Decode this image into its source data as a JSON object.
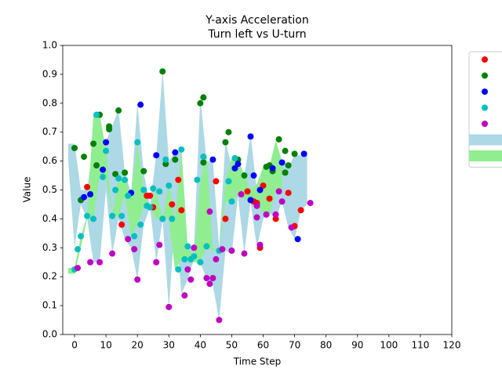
{
  "chart_data": {
    "type": "scatter",
    "title": "Y-axis Acceleration",
    "subtitle": "Turn left vs U-turn",
    "x_label": "Time Step",
    "y_label": "Value",
    "xlim": [
      -3.75,
      120
    ],
    "ylim": [
      0,
      1
    ],
    "xticks": [
      0,
      10,
      20,
      30,
      40,
      50,
      60,
      70,
      80,
      90,
      100,
      110,
      120
    ],
    "yticks": [
      {
        "value": 0,
        "label": "0.0"
      },
      0.1,
      0.2,
      0.3,
      0.4,
      0.5,
      0.6,
      0.7,
      0.8,
      0.9,
      {
        "value": 1,
        "label": "1.0"
      }
    ],
    "grid": false,
    "legend": "right",
    "bands": [
      {
        "color": "#add8e6",
        "x": [
          -2,
          0,
          2,
          4,
          6,
          8,
          10,
          12,
          14,
          16,
          18,
          20,
          22,
          24,
          26,
          28,
          30,
          32,
          34,
          36,
          38,
          40,
          42,
          44,
          46,
          48,
          50,
          52,
          54,
          56,
          58,
          60,
          62,
          64,
          66,
          68,
          70,
          72,
          74
        ],
        "upper": [
          0.66,
          0.66,
          0.5,
          0.5,
          0.66,
          0.57,
          0.67,
          0.72,
          0.78,
          0.56,
          0.49,
          0.8,
          0.56,
          0.45,
          0.62,
          0.91,
          0.6,
          0.63,
          0.64,
          0.3,
          0.3,
          0.82,
          0.6,
          0.6,
          0.3,
          0.67,
          0.58,
          0.6,
          0.55,
          0.69,
          0.5,
          0.58,
          0.58,
          0.67,
          0.6,
          0.58,
          0.62,
          0.62,
          0.62
        ],
        "lower": [
          0.6,
          0.3,
          0.45,
          0.4,
          0.25,
          0.25,
          0.5,
          0.28,
          0.4,
          0.33,
          0.3,
          0.19,
          0.38,
          0.44,
          0.25,
          0.4,
          0.09,
          0.4,
          0.14,
          0.19,
          0.26,
          0.25,
          0.19,
          0.17,
          0.05,
          0.29,
          0.28,
          0.48,
          0.28,
          0.46,
          0.3,
          0.4,
          0.42,
          0.4,
          0.46,
          0.37,
          0.33,
          0.43,
          0.45
        ]
      },
      {
        "color": "#90ee90",
        "x": [
          -2,
          0,
          2,
          4,
          6,
          8,
          10,
          12,
          14,
          16,
          18,
          20,
          22,
          24,
          26,
          28,
          30,
          32,
          34,
          36,
          38,
          40,
          42,
          44,
          46,
          48,
          50,
          52,
          54,
          56,
          58,
          60,
          62,
          64,
          66
        ],
        "upper": [
          0.23,
          0.23,
          0.34,
          0.41,
          0.76,
          0.76,
          0.64,
          0.41,
          0.54,
          0.54,
          0.48,
          0.66,
          0.5,
          0.44,
          0.5,
          0.4,
          0.52,
          0.4,
          0.64,
          0.3,
          0.27,
          0.53,
          0.62,
          0.3,
          0.29,
          0.53,
          0.61,
          0.61,
          0.55,
          0.5,
          0.52,
          0.58,
          0.58,
          0.67,
          0.6
        ],
        "lower": [
          0.21,
          0.21,
          0.3,
          0.4,
          0.4,
          0.55,
          0.54,
          0.41,
          0.41,
          0.48,
          0.34,
          0.38,
          0.44,
          0.44,
          0.4,
          0.4,
          0.4,
          0.22,
          0.26,
          0.26,
          0.25,
          0.25,
          0.3,
          0.29,
          0.29,
          0.46,
          0.46,
          0.48,
          0.47,
          0.46,
          0.45,
          0.42,
          0.41,
          0.5,
          0.5
        ]
      }
    ],
    "series": [
      {
        "color": "#ff0000",
        "x": [
          4,
          15,
          23,
          24,
          25,
          31,
          33,
          34,
          45,
          48,
          55,
          57,
          58,
          60,
          62,
          64,
          68,
          70,
          72,
          59
        ],
        "values": [
          0.51,
          0.38,
          0.48,
          0.48,
          0.44,
          0.45,
          0.535,
          0.43,
          0.53,
          0.4,
          0.495,
          0.46,
          0.455,
          0.515,
          0.47,
          0.4,
          0.49,
          0.375,
          0.43,
          0.3
        ]
      },
      {
        "color": "#008000",
        "x": [
          0,
          2,
          3,
          6,
          7,
          8,
          11,
          11,
          13,
          14,
          16,
          22,
          28,
          29,
          32,
          40,
          41,
          41,
          48,
          49,
          52,
          54,
          61,
          62,
          63,
          65,
          67,
          67,
          68,
          70
        ],
        "values": [
          0.645,
          0.465,
          0.615,
          0.66,
          0.585,
          0.76,
          0.72,
          0.71,
          0.555,
          0.775,
          0.56,
          0.565,
          0.91,
          0.59,
          0.605,
          0.8,
          0.82,
          0.595,
          0.665,
          0.7,
          0.605,
          0.55,
          0.58,
          0.585,
          0.565,
          0.675,
          0.635,
          0.56,
          0.585,
          0.625
        ]
      },
      {
        "color": "#0000ff",
        "x": [
          3,
          5,
          9,
          10,
          18,
          21,
          26,
          32,
          44,
          51,
          52,
          56,
          56,
          57,
          59,
          63,
          66,
          71,
          73
        ],
        "values": [
          0.475,
          0.485,
          0.57,
          0.665,
          0.49,
          0.795,
          0.62,
          0.63,
          0.605,
          0.575,
          0.59,
          0.465,
          0.685,
          0.55,
          0.5,
          0.575,
          0.595,
          0.33,
          0.625
        ]
      },
      {
        "color": "#00bfbf",
        "x": [
          0,
          1,
          2,
          4,
          6,
          7,
          9,
          10,
          12,
          13,
          14,
          15,
          16,
          17,
          19,
          20,
          21,
          22,
          23,
          24,
          25,
          27,
          28,
          29,
          30,
          31,
          33,
          34,
          35,
          36,
          37,
          38,
          39,
          40,
          41,
          42,
          46,
          49,
          50,
          51
        ],
        "values": [
          0.225,
          0.295,
          0.34,
          0.41,
          0.4,
          0.76,
          0.545,
          0.635,
          0.41,
          0.5,
          0.54,
          0.41,
          0.535,
          0.48,
          0.34,
          0.665,
          0.38,
          0.5,
          0.445,
          0.44,
          0.505,
          0.495,
          0.4,
          0.605,
          0.515,
          0.4,
          0.225,
          0.64,
          0.26,
          0.305,
          0.26,
          0.27,
          0.535,
          0.25,
          0.615,
          0.305,
          0.29,
          0.53,
          0.46,
          0.61
        ]
      },
      {
        "color": "#bf00bf",
        "x": [
          1,
          5,
          8,
          12,
          17,
          19,
          20,
          26,
          27,
          30,
          35,
          36,
          37,
          38,
          42,
          43,
          43,
          44,
          45,
          46,
          47,
          50,
          53,
          54,
          58,
          59,
          61,
          64,
          65,
          66,
          69,
          75,
          58
        ],
        "values": [
          0.23,
          0.25,
          0.25,
          0.28,
          0.33,
          0.295,
          0.19,
          0.25,
          0.31,
          0.095,
          0.135,
          0.225,
          0.19,
          0.3,
          0.195,
          0.175,
          0.425,
          0.195,
          0.26,
          0.05,
          0.295,
          0.29,
          0.485,
          0.28,
          0.405,
          0.31,
          0.415,
          0.415,
          0.495,
          0.46,
          0.37,
          0.455,
          0.445
        ]
      }
    ]
  }
}
